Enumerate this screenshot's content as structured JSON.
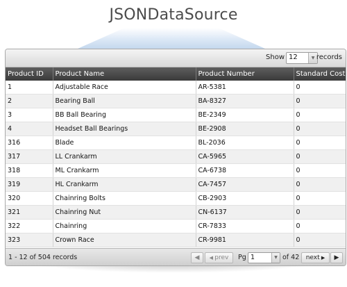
{
  "header": {
    "title": "JSONDataSource"
  },
  "toolbar": {
    "show_label": "Show",
    "page_size": "12",
    "records_label": "records"
  },
  "columns": [
    "Product ID",
    "Product Name",
    "Product Number",
    "Standard Cost"
  ],
  "rows": [
    [
      "1",
      "Adjustable Race",
      "AR-5381",
      "0"
    ],
    [
      "2",
      "Bearing Ball",
      "BA-8327",
      "0"
    ],
    [
      "3",
      "BB Ball Bearing",
      "BE-2349",
      "0"
    ],
    [
      "4",
      "Headset Ball Bearings",
      "BE-2908",
      "0"
    ],
    [
      "316",
      "Blade",
      "BL-2036",
      "0"
    ],
    [
      "317",
      "LL Crankarm",
      "CA-5965",
      "0"
    ],
    [
      "318",
      "ML Crankarm",
      "CA-6738",
      "0"
    ],
    [
      "319",
      "HL Crankarm",
      "CA-7457",
      "0"
    ],
    [
      "320",
      "Chainring Bolts",
      "CB-2903",
      "0"
    ],
    [
      "321",
      "Chainring Nut",
      "CN-6137",
      "0"
    ],
    [
      "322",
      "Chainring",
      "CR-7833",
      "0"
    ],
    [
      "323",
      "Crown Race",
      "CR-9981",
      "0"
    ]
  ],
  "pager": {
    "status": "1 - 12 of 504 records",
    "first_icon": "first-page-icon",
    "prev_label": "prev",
    "pg_label": "Pg",
    "current_page": "1",
    "of_label": "of 42",
    "next_label": "next",
    "last_icon": "last-page-icon"
  }
}
